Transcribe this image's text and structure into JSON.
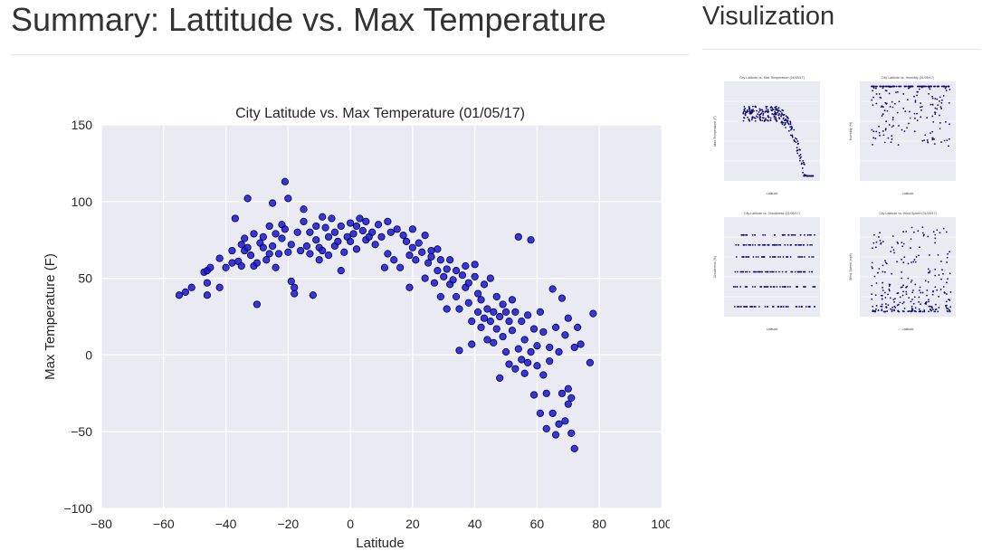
{
  "page": {
    "title": "Summary: Lattitude vs. Max Temperature",
    "sidebar_title": "Visulization"
  },
  "colors": {
    "plot_bg": "#eaeaf2",
    "grid": "#ffffff",
    "point_fill": "#1515e0",
    "point_edge": "#000033",
    "thumb_point": "#0a0a6e"
  },
  "chart_data": {
    "type": "scatter",
    "title": "City Latitude vs. Max Temperature (01/05/17)",
    "xlabel": "Latitude",
    "ylabel": "Max Temperature (F)",
    "xlim": [
      -80,
      100
    ],
    "ylim": [
      -100,
      150
    ],
    "xticks": [
      -80,
      -60,
      -40,
      -20,
      0,
      20,
      40,
      60,
      80,
      100
    ],
    "yticks": [
      -100,
      -50,
      0,
      50,
      100,
      150
    ],
    "xtick_labels": [
      "−80",
      "−60",
      "−40",
      "−20",
      "0",
      "20",
      "40",
      "60",
      "80",
      "100"
    ],
    "ytick_labels": [
      "−100",
      "−50",
      "0",
      "50",
      "100",
      "150"
    ],
    "grid": true,
    "series": [
      {
        "points": [
          [
            -55,
            39
          ],
          [
            -53,
            41
          ],
          [
            -51,
            44
          ],
          [
            -47,
            54
          ],
          [
            -46,
            55
          ],
          [
            -46,
            47
          ],
          [
            -46,
            39
          ],
          [
            -45,
            57
          ],
          [
            -42,
            63
          ],
          [
            -42,
            44
          ],
          [
            -40,
            57
          ],
          [
            -38,
            60
          ],
          [
            -38,
            68
          ],
          [
            -37,
            89
          ],
          [
            -36,
            61
          ],
          [
            -35,
            72
          ],
          [
            -35,
            58
          ],
          [
            -34,
            68
          ],
          [
            -34,
            76
          ],
          [
            -33,
            70
          ],
          [
            -33,
            102
          ],
          [
            -32,
            65
          ],
          [
            -31,
            58
          ],
          [
            -31,
            79
          ],
          [
            -30,
            33
          ],
          [
            -30,
            60
          ],
          [
            -29,
            73
          ],
          [
            -28,
            70
          ],
          [
            -28,
            77
          ],
          [
            -27,
            62
          ],
          [
            -26,
            84
          ],
          [
            -26,
            66
          ],
          [
            -25,
            99
          ],
          [
            -25,
            71
          ],
          [
            -24,
            57
          ],
          [
            -24,
            79
          ],
          [
            -23,
            66
          ],
          [
            -22,
            76
          ],
          [
            -22,
            85
          ],
          [
            -21,
            113
          ],
          [
            -21,
            82
          ],
          [
            -20,
            102
          ],
          [
            -20,
            67
          ],
          [
            -19,
            48
          ],
          [
            -19,
            72
          ],
          [
            -18,
            40
          ],
          [
            -18,
            44
          ],
          [
            -17,
            80
          ],
          [
            -16,
            68
          ],
          [
            -15,
            87
          ],
          [
            -15,
            95
          ],
          [
            -14,
            71
          ],
          [
            -13,
            66
          ],
          [
            -13,
            80
          ],
          [
            -12,
            39
          ],
          [
            -11,
            84
          ],
          [
            -11,
            75
          ],
          [
            -10,
            62
          ],
          [
            -10,
            70
          ],
          [
            -9,
            68
          ],
          [
            -9,
            90
          ],
          [
            -8,
            83
          ],
          [
            -7,
            65
          ],
          [
            -7,
            77
          ],
          [
            -6,
            89
          ],
          [
            -5,
            80
          ],
          [
            -5,
            71
          ],
          [
            -4,
            74
          ],
          [
            -3,
            55
          ],
          [
            -3,
            84
          ],
          [
            -2,
            67
          ],
          [
            -1,
            77
          ],
          [
            0,
            86
          ],
          [
            0,
            74
          ],
          [
            1,
            79
          ],
          [
            2,
            84
          ],
          [
            2,
            69
          ],
          [
            3,
            89
          ],
          [
            4,
            81
          ],
          [
            5,
            75
          ],
          [
            5,
            87
          ],
          [
            6,
            77
          ],
          [
            7,
            80
          ],
          [
            8,
            72
          ],
          [
            9,
            85
          ],
          [
            10,
            77
          ],
          [
            11,
            57
          ],
          [
            12,
            87
          ],
          [
            12,
            66
          ],
          [
            13,
            80
          ],
          [
            14,
            62
          ],
          [
            15,
            82
          ],
          [
            16,
            57
          ],
          [
            17,
            78
          ],
          [
            18,
            74
          ],
          [
            19,
            44
          ],
          [
            19,
            65
          ],
          [
            20,
            82
          ],
          [
            20,
            70
          ],
          [
            21,
            62
          ],
          [
            22,
            73
          ],
          [
            23,
            67
          ],
          [
            24,
            50
          ],
          [
            24,
            78
          ],
          [
            25,
            60
          ],
          [
            26,
            64
          ],
          [
            26,
            68
          ],
          [
            27,
            47
          ],
          [
            28,
            55
          ],
          [
            28,
            69
          ],
          [
            29,
            38
          ],
          [
            29,
            62
          ],
          [
            30,
            51
          ],
          [
            31,
            30
          ],
          [
            31,
            56
          ],
          [
            32,
            46
          ],
          [
            32,
            62
          ],
          [
            33,
            49
          ],
          [
            34,
            38
          ],
          [
            34,
            55
          ],
          [
            35,
            3
          ],
          [
            35,
            30
          ],
          [
            36,
            52
          ],
          [
            37,
            44
          ],
          [
            37,
            58
          ],
          [
            38,
            34
          ],
          [
            38,
            47
          ],
          [
            39,
            7
          ],
          [
            39,
            22
          ],
          [
            40,
            51
          ],
          [
            40,
            59
          ],
          [
            41,
            28
          ],
          [
            41,
            40
          ],
          [
            42,
            18
          ],
          [
            42,
            36
          ],
          [
            43,
            24
          ],
          [
            43,
            46
          ],
          [
            44,
            10
          ],
          [
            44,
            30
          ],
          [
            45,
            22
          ],
          [
            45,
            50
          ],
          [
            46,
            8
          ],
          [
            46,
            28
          ],
          [
            47,
            17
          ],
          [
            47,
            38
          ],
          [
            48,
            -15
          ],
          [
            48,
            25
          ],
          [
            49,
            12
          ],
          [
            49,
            33
          ],
          [
            50,
            2
          ],
          [
            50,
            28
          ],
          [
            51,
            22
          ],
          [
            51,
            -6
          ],
          [
            52,
            16
          ],
          [
            52,
            36
          ],
          [
            53,
            -9
          ],
          [
            53,
            28
          ],
          [
            54,
            4
          ],
          [
            54,
            77
          ],
          [
            55,
            -3
          ],
          [
            55,
            22
          ],
          [
            56,
            -12
          ],
          [
            56,
            10
          ],
          [
            57,
            26
          ],
          [
            57,
            -5
          ],
          [
            58,
            2
          ],
          [
            58,
            75
          ],
          [
            59,
            17
          ],
          [
            59,
            -26
          ],
          [
            60,
            -7
          ],
          [
            60,
            6
          ],
          [
            61,
            -38
          ],
          [
            61,
            28
          ],
          [
            62,
            -13
          ],
          [
            62,
            15
          ],
          [
            63,
            -48
          ],
          [
            63,
            -25
          ],
          [
            64,
            5
          ],
          [
            64,
            -4
          ],
          [
            65,
            43
          ],
          [
            65,
            -38
          ],
          [
            66,
            18
          ],
          [
            66,
            -52
          ],
          [
            67,
            -45
          ],
          [
            67,
            2
          ],
          [
            68,
            -25
          ],
          [
            68,
            37
          ],
          [
            69,
            -43
          ],
          [
            69,
            13
          ],
          [
            70,
            -22
          ],
          [
            70,
            -32
          ],
          [
            70,
            24
          ],
          [
            71,
            -28
          ],
          [
            71,
            -51
          ],
          [
            72,
            -61
          ],
          [
            72,
            5
          ],
          [
            73,
            18
          ],
          [
            74,
            7
          ],
          [
            77,
            -5
          ],
          [
            78,
            27
          ]
        ]
      }
    ]
  },
  "thumbnails": [
    {
      "title": "City Latitude vs. Max Temperature (01/05/17)",
      "xlabel": "Latitude",
      "ylabel": "Max Temperature (F)"
    },
    {
      "title": "City Latitude vs. Humidity (01/05/17)",
      "xlabel": "Latitude",
      "ylabel": "Humidity (%)"
    },
    {
      "title": "City Latitude vs. Cloudiness (01/05/17)",
      "xlabel": "Latitude",
      "ylabel": "Cloudiness (%)"
    },
    {
      "title": "City Latitude vs. Wind Speed (01/05/17)",
      "xlabel": "Latitude",
      "ylabel": "Wind Speed (mph)"
    }
  ]
}
